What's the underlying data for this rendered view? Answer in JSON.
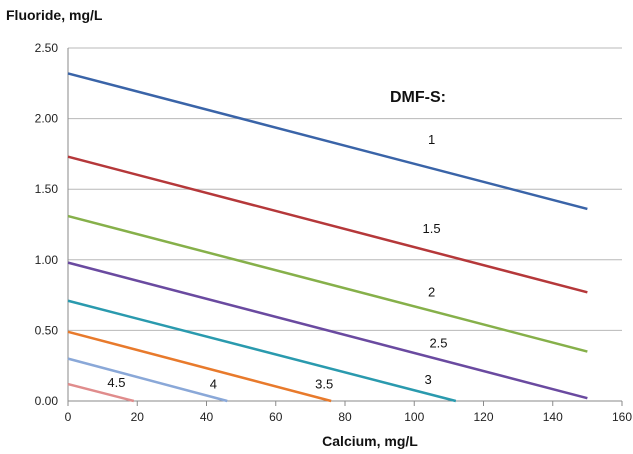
{
  "chart_data": {
    "type": "line",
    "title": "",
    "xlabel": "Calcium, mg/L",
    "ylabel": "Fluoride, mg/L",
    "legend_title": "DMF-S:",
    "xlim": [
      0,
      160
    ],
    "ylim": [
      0,
      2.5
    ],
    "x_ticks": [
      "0",
      "20",
      "40",
      "60",
      "80",
      "100",
      "120",
      "140",
      "160"
    ],
    "y_ticks": [
      "0.00",
      "0.50",
      "1.00",
      "1.50",
      "2.00",
      "2.50"
    ],
    "grid": "horizontal",
    "series": [
      {
        "name": "1",
        "color": "#3a64a8",
        "x": [
          0,
          150
        ],
        "y": [
          2.32,
          1.36
        ]
      },
      {
        "name": "1.5",
        "color": "#b5383a",
        "x": [
          0,
          150
        ],
        "y": [
          1.73,
          0.77
        ]
      },
      {
        "name": "2",
        "color": "#86b04a",
        "x": [
          0,
          150
        ],
        "y": [
          1.31,
          0.35
        ]
      },
      {
        "name": "2.5",
        "color": "#6a4aa0",
        "x": [
          0,
          150
        ],
        "y": [
          0.98,
          0.02
        ]
      },
      {
        "name": "3",
        "color": "#2a9aae",
        "x": [
          0,
          112
        ],
        "y": [
          0.71,
          0.0
        ]
      },
      {
        "name": "3.5",
        "color": "#e87a2c",
        "x": [
          0,
          76
        ],
        "y": [
          0.49,
          0.0
        ]
      },
      {
        "name": "4",
        "color": "#8aa8d8",
        "x": [
          0,
          46
        ],
        "y": [
          0.3,
          0.0
        ]
      },
      {
        "name": "4.5",
        "color": "#e08c8c",
        "x": [
          0,
          19
        ],
        "y": [
          0.12,
          0.0
        ]
      }
    ],
    "series_labels": [
      {
        "text": "1",
        "x": 105,
        "y": 1.82
      },
      {
        "text": "1.5",
        "x": 105,
        "y": 1.19
      },
      {
        "text": "2",
        "x": 105,
        "y": 0.74
      },
      {
        "text": "2.5",
        "x": 107,
        "y": 0.38
      },
      {
        "text": "3",
        "x": 104,
        "y": 0.12
      },
      {
        "text": "3.5",
        "x": 74,
        "y": 0.09
      },
      {
        "text": "4",
        "x": 42,
        "y": 0.09
      },
      {
        "text": "4.5",
        "x": 14,
        "y": 0.1
      }
    ]
  }
}
